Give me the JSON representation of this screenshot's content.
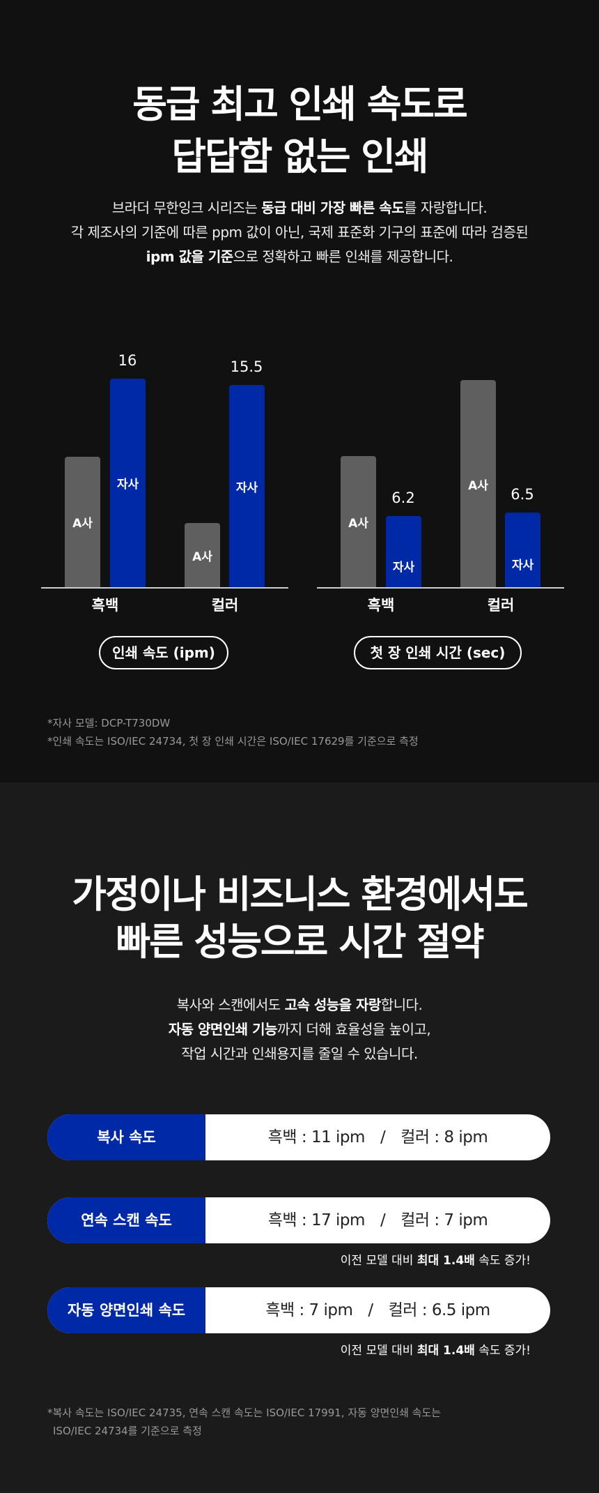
{
  "section1": {
    "title": [
      "동급 최고 인쇄 속도로",
      "답답함 없는 인쇄"
    ],
    "para": [
      [
        {
          "t": "브라더 무한잉크 시리즈는 ",
          "b": false
        },
        {
          "t": "동급 대비 가장 빠른 속도",
          "b": true
        },
        {
          "t": "를 자랑합니다.",
          "b": false
        }
      ],
      [
        {
          "t": "각 제조사의 기준에 따른 ppm 값이 아닌, 국제 표준화 기구의 표준에 따라 검증된",
          "b": false
        }
      ],
      [
        {
          "t": "ipm 값을 기준",
          "b": true
        },
        {
          "t": "으로 정확하고 빠른 인쇄를 제공합니다.",
          "b": false
        }
      ]
    ],
    "footnotes": [
      "*자사 모델: DCP-T730DW",
      "*인쇄 속도는 ISO/IEC 24734, 첫 장 인쇄 시간은 ISO/IEC 17629를 기준으로 측정"
    ]
  },
  "chart_data": [
    {
      "type": "bar",
      "title": "인쇄 속도 (ipm)",
      "categories": [
        "흑백",
        "컬러"
      ],
      "ylim": [
        0,
        17.1
      ],
      "series": [
        {
          "name": "A사",
          "values": [
            10,
            4.9
          ],
          "color": "#5f5f5f",
          "labeled": false
        },
        {
          "name": "자사",
          "values": [
            16,
            15.5
          ],
          "color": "#0029a8",
          "labeled": true
        }
      ]
    },
    {
      "type": "bar",
      "title": "첫 장 인쇄 시간 (sec)",
      "categories": [
        "흑백",
        "컬러"
      ],
      "ylim": [
        0,
        19.4
      ],
      "series": [
        {
          "name": "A사",
          "values": [
            11.4,
            18
          ],
          "color": "#5f5f5f",
          "labeled": false
        },
        {
          "name": "자사",
          "values": [
            6.2,
            6.5
          ],
          "color": "#0029a8",
          "labeled": true
        }
      ]
    }
  ],
  "section2": {
    "title": [
      "가정이나 비즈니스 환경에서도",
      "빠른 성능으로 시간 절약"
    ],
    "para": [
      [
        {
          "t": "복사와 스캔에서도 ",
          "b": false
        },
        {
          "t": "고속 성능을 자랑",
          "b": true
        },
        {
          "t": "합니다.",
          "b": false
        }
      ],
      [
        {
          "t": "자동 양면인쇄 기능",
          "b": true
        },
        {
          "t": "까지 더해 효율성을 높이고,",
          "b": false
        }
      ],
      [
        {
          "t": "작업 시간과 인쇄용지를 줄일 수 있습니다.",
          "b": false
        }
      ]
    ],
    "rows": [
      {
        "label": "복사 속도",
        "mono": "흑백 : 11 ipm",
        "color": "컬러 : 8 ipm",
        "note": null
      },
      {
        "label": "연속 스캔 속도",
        "mono": "흑백 : 17 ipm",
        "color": "컬러 : 7 ipm",
        "note": [
          {
            "t": "이전 모델 대비 ",
            "b": false
          },
          {
            "t": "최대 1.4배",
            "b": true
          },
          {
            "t": " 속도 증가!",
            "b": false
          }
        ]
      },
      {
        "label": "자동 양면인쇄 속도",
        "mono": "흑백 : 7 ipm",
        "color": "컬러 : 6.5 ipm",
        "note": [
          {
            "t": "이전 모델 대비 ",
            "b": false
          },
          {
            "t": "최대 1.4배",
            "b": true
          },
          {
            "t": " 속도 증가!",
            "b": false
          }
        ]
      }
    ],
    "separator": "/",
    "footnotes": [
      "*복사 속도는 ISO/IEC 24735, 연속 스캔 속도는 ISO/IEC 17991, 자동 양면인쇄 속도는",
      "ISO/IEC 24734를 기준으로 측정"
    ]
  }
}
